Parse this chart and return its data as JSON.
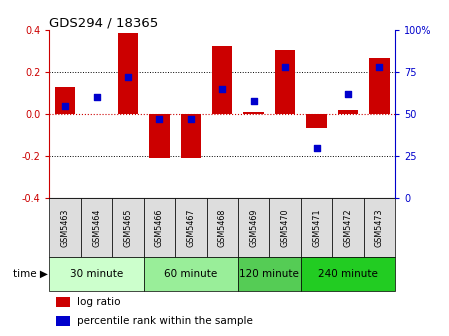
{
  "title": "GDS294 / 18365",
  "samples": [
    "GSM5463",
    "GSM5464",
    "GSM5465",
    "GSM5466",
    "GSM5467",
    "GSM5468",
    "GSM5469",
    "GSM5470",
    "GSM5471",
    "GSM5472",
    "GSM5473"
  ],
  "log_ratio_bottom": [
    0.0,
    0.0,
    0.0,
    -0.21,
    -0.21,
    0.0,
    0.0,
    0.0,
    -0.065,
    0.0,
    0.0
  ],
  "log_ratio_top": [
    0.13,
    0.0,
    0.385,
    0.0,
    0.0,
    0.325,
    0.01,
    0.305,
    0.0,
    0.02,
    0.27
  ],
  "percentile": [
    55,
    60,
    72,
    47,
    47,
    65,
    58,
    78,
    30,
    62,
    78
  ],
  "bar_color": "#cc0000",
  "dot_color": "#0000cc",
  "ylim": [
    -0.4,
    0.4
  ],
  "yticks_left": [
    -0.4,
    -0.2,
    0.0,
    0.2,
    0.4
  ],
  "yticks_right": [
    0,
    25,
    50,
    75,
    100
  ],
  "groups": [
    {
      "label": "30 minute",
      "start": 0,
      "end": 3,
      "color": "#ccffcc"
    },
    {
      "label": "60 minute",
      "start": 3,
      "end": 6,
      "color": "#99ee99"
    },
    {
      "label": "120 minute",
      "start": 6,
      "end": 8,
      "color": "#55cc55"
    },
    {
      "label": "240 minute",
      "start": 8,
      "end": 11,
      "color": "#22cc22"
    }
  ],
  "legend_log_ratio": "log ratio",
  "legend_percentile": "percentile rank within the sample",
  "bar_color_left": "#cc0000",
  "tick_color_right": "#0000cc"
}
